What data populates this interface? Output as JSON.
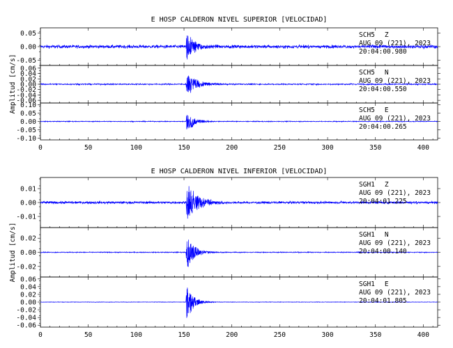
{
  "chart_data": {
    "type": "line",
    "xlabel": "",
    "colors": {
      "trace": "#0000ff",
      "axis": "#000000"
    },
    "x_ticks": [
      0,
      50,
      100,
      150,
      200,
      250,
      300,
      350,
      400
    ],
    "xlim": [
      0,
      415
    ],
    "groups": [
      {
        "title": "E HOSP CALDERON NIVEL SUPERIOR [VELOCIDAD]",
        "ylabel": "Amplitud [cm/s]",
        "traces": [
          {
            "station": "SCH5",
            "component": "Z",
            "date": "AUG 09 (221), 2023",
            "time": "20:04:00.980",
            "ylim": [
              -0.07,
              0.07
            ],
            "yticks": [
              0.05,
              0.0,
              -0.05
            ],
            "ytick_labels": [
              "0.05",
              "0.00",
              "-0.05"
            ],
            "event_start_s": 152,
            "noise_amp": 0.01,
            "peak_amp": 0.06,
            "decay_s": 9
          },
          {
            "station": "SCH5",
            "component": "N",
            "date": "AUG 09 (221), 2023",
            "time": "20:04:00.550",
            "ylim": [
              -0.07,
              0.07
            ],
            "yticks": [
              0.06,
              0.04,
              0.02,
              0.0,
              -0.02,
              -0.04,
              -0.06
            ],
            "ytick_labels": [
              "0.06",
              "0.04",
              "0.02",
              "0.00",
              "-0.02",
              "-0.04",
              "-0.06"
            ],
            "event_start_s": 152,
            "noise_amp": 0.004,
            "peak_amp": 0.045,
            "decay_s": 12
          },
          {
            "station": "SCH5",
            "component": "E",
            "date": "AUG 09 (221), 2023",
            "time": "20:04:00.265",
            "ylim": [
              -0.11,
              0.11
            ],
            "yticks": [
              0.1,
              0.05,
              0.0,
              -0.05,
              -0.1
            ],
            "ytick_labels": [
              "0.10",
              "0.05",
              "0.00",
              "-0.05",
              "-0.10"
            ],
            "event_start_s": 152,
            "noise_amp": 0.004,
            "peak_amp": 0.08,
            "decay_s": 8
          }
        ]
      },
      {
        "title": "E HOSP CALDERON NIVEL INFERIOR [VELOCIDAD]",
        "ylabel": "Amplitud [cm/s]",
        "traces": [
          {
            "station": "SGH1",
            "component": "Z",
            "date": "AUG 09 (221), 2023",
            "time": "20:04:01.225",
            "ylim": [
              -0.018,
              0.018
            ],
            "yticks": [
              0.01,
              0.0,
              -0.01
            ],
            "ytick_labels": [
              "0.01",
              "0.00",
              "-0.01"
            ],
            "event_start_s": 152,
            "noise_amp": 0.0015,
            "peak_amp": 0.016,
            "decay_s": 12
          },
          {
            "station": "SGH1",
            "component": "N",
            "date": "AUG 09 (221), 2023",
            "time": "20:04:00.140",
            "ylim": [
              -0.035,
              0.035
            ],
            "yticks": [
              0.02,
              0.0,
              -0.02
            ],
            "ytick_labels": [
              "0.02",
              "0.00",
              "-0.02"
            ],
            "event_start_s": 152,
            "noise_amp": 0.001,
            "peak_amp": 0.03,
            "decay_s": 8
          },
          {
            "station": "SGH1",
            "component": "E",
            "date": "AUG 09 (221), 2023",
            "time": "20:04:01.805",
            "ylim": [
              -0.065,
              0.065
            ],
            "yticks": [
              0.06,
              0.04,
              0.02,
              0.0,
              -0.02,
              -0.04,
              -0.06
            ],
            "ytick_labels": [
              "0.06",
              "0.04",
              "0.02",
              "0.00",
              "-0.02",
              "-0.04",
              "-0.06"
            ],
            "event_start_s": 152,
            "noise_amp": 0.001,
            "peak_amp": 0.055,
            "decay_s": 7
          }
        ]
      }
    ]
  }
}
